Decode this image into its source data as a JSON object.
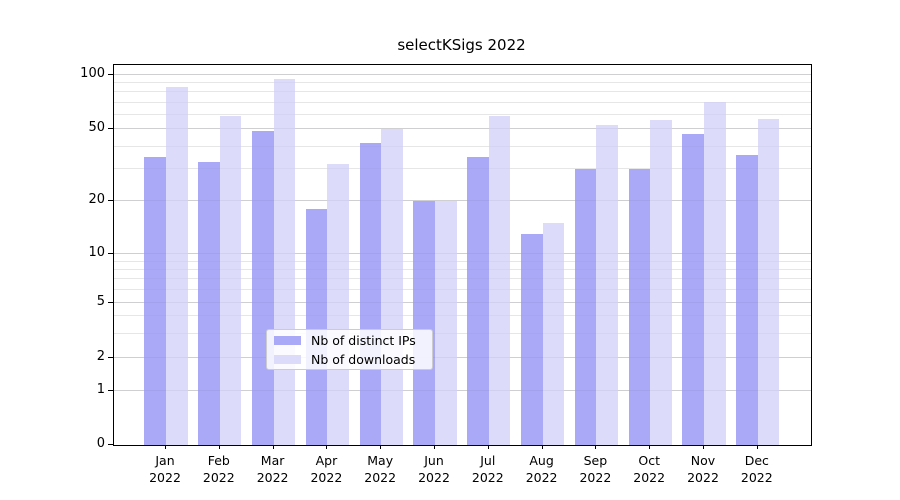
{
  "chart_data": {
    "type": "bar",
    "title": "selectKSigs 2022",
    "categories": [
      "Jan 2022",
      "Feb 2022",
      "Mar 2022",
      "Apr 2022",
      "May 2022",
      "Jun 2022",
      "Jul 2022",
      "Aug 2022",
      "Sep 2022",
      "Oct 2022",
      "Nov 2022",
      "Dec 2022"
    ],
    "series": [
      {
        "name": "Nb of distinct IPs",
        "color": "#a9a9f7",
        "values": [
          35,
          33,
          49,
          18,
          42,
          20,
          35,
          13,
          30,
          30,
          47,
          36
        ]
      },
      {
        "name": "Nb of downloads",
        "color": "#dcdcfa",
        "values": [
          86,
          59,
          95,
          32,
          50,
          20,
          59,
          15,
          53,
          56,
          71,
          57
        ]
      }
    ],
    "xlabel": "",
    "ylabel": "",
    "y_scale": "asinh-log (symlog-like, 0 shown on axis)",
    "y_ticks": [
      0,
      1,
      2,
      5,
      10,
      20,
      50,
      100
    ],
    "y_minor_ticks": [
      3,
      4,
      6,
      7,
      8,
      9,
      30,
      40,
      60,
      70,
      80,
      90
    ],
    "ylim": [
      0,
      115
    ],
    "grid": "horizontal major + minor",
    "legend_position": "lower center",
    "colors": {
      "text": "#000000",
      "spine": "#000000",
      "grid_major": "#d9d9d9",
      "grid_minor": "#eeeeee",
      "legend_border": "#cccccc"
    }
  }
}
